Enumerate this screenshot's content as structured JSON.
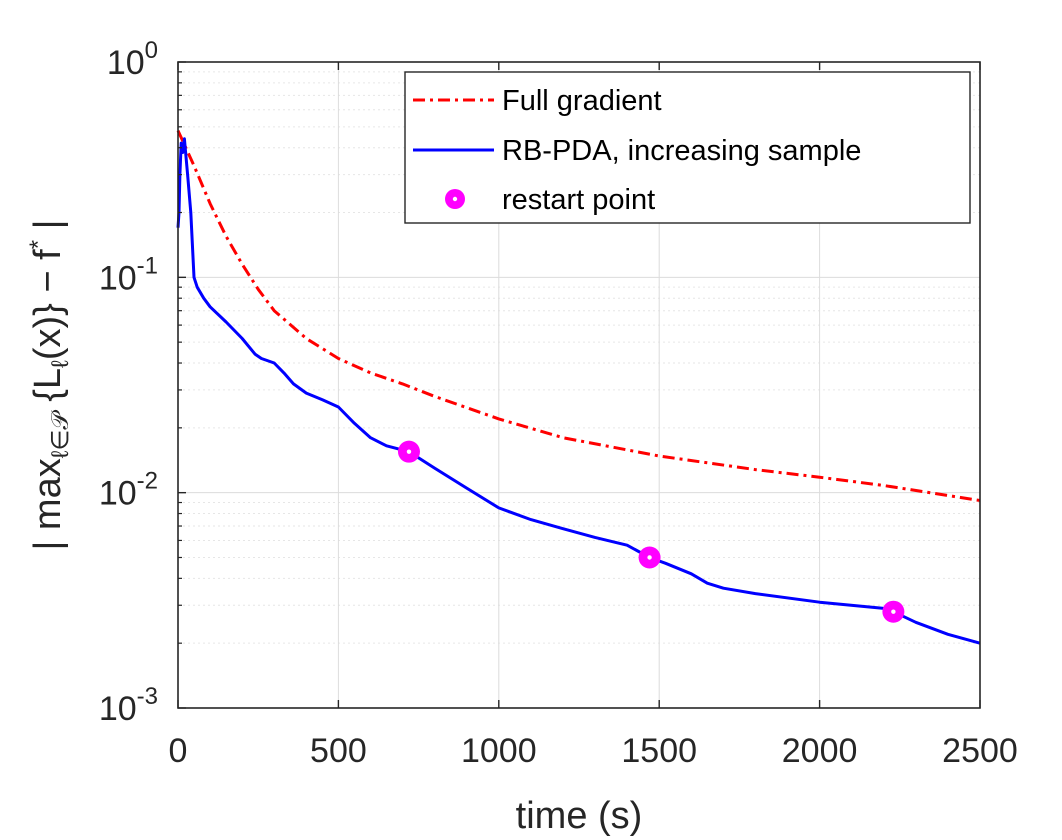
{
  "chart_data": {
    "type": "line",
    "y_scale": "log",
    "title": "",
    "xlabel": "time (s)",
    "ylabel_parts": [
      "| max",
      "ℓ∈𝒫",
      " {L",
      "ℓ",
      "(x)} − f",
      "*",
      " |"
    ],
    "xlim": [
      0,
      2500
    ],
    "ylim": [
      0.001,
      1
    ],
    "x_ticks": [
      0,
      500,
      1000,
      1500,
      2000,
      2500
    ],
    "x_tick_labels": [
      "0",
      "500",
      "1000",
      "1500",
      "2000",
      "2500"
    ],
    "y_ticks": [
      {
        "value": 1,
        "base": "10",
        "exp": "0"
      },
      {
        "value": 0.1,
        "base": "10",
        "exp": "-1"
      },
      {
        "value": 0.01,
        "base": "10",
        "exp": "-2"
      },
      {
        "value": 0.001,
        "base": "10",
        "exp": "-3"
      }
    ],
    "grid": true,
    "legend_position": "top-right",
    "series": [
      {
        "name": "Full gradient",
        "color": "#ff0000",
        "style": "dash-dot",
        "x": [
          0,
          50,
          100,
          150,
          200,
          250,
          300,
          400,
          500,
          600,
          700,
          800,
          1000,
          1200,
          1500,
          1800,
          2000,
          2200,
          2500
        ],
        "y": [
          0.48,
          0.33,
          0.22,
          0.155,
          0.115,
          0.088,
          0.07,
          0.052,
          0.042,
          0.036,
          0.032,
          0.028,
          0.022,
          0.018,
          0.0148,
          0.0128,
          0.0118,
          0.0108,
          0.0092
        ]
      },
      {
        "name": "RB-PDA, increasing sample",
        "color": "#0000ff",
        "style": "solid",
        "x": [
          0,
          3,
          6,
          10,
          15,
          20,
          30,
          40,
          50,
          60,
          80,
          100,
          150,
          200,
          240,
          260,
          300,
          330,
          360,
          400,
          450,
          500,
          550,
          600,
          650,
          720,
          750,
          800,
          900,
          1000,
          1100,
          1200,
          1300,
          1400,
          1470,
          1520,
          1600,
          1650,
          1700,
          1800,
          2000,
          2200,
          2230,
          2300,
          2400,
          2500
        ],
        "y": [
          0.17,
          0.2,
          0.3,
          0.42,
          0.38,
          0.44,
          0.3,
          0.2,
          0.1,
          0.09,
          0.08,
          0.073,
          0.062,
          0.052,
          0.044,
          0.042,
          0.04,
          0.036,
          0.032,
          0.029,
          0.027,
          0.025,
          0.021,
          0.018,
          0.0165,
          0.0155,
          0.0145,
          0.013,
          0.0105,
          0.0085,
          0.0075,
          0.0068,
          0.0062,
          0.0057,
          0.005,
          0.0047,
          0.0042,
          0.0038,
          0.0036,
          0.0034,
          0.0031,
          0.0029,
          0.0028,
          0.0025,
          0.0022,
          0.002
        ]
      }
    ],
    "markers": {
      "name": "restart point",
      "color": "#ff00ff",
      "points": [
        {
          "x": 720,
          "y": 0.0155
        },
        {
          "x": 1470,
          "y": 0.005
        },
        {
          "x": 2230,
          "y": 0.0028
        }
      ]
    }
  }
}
